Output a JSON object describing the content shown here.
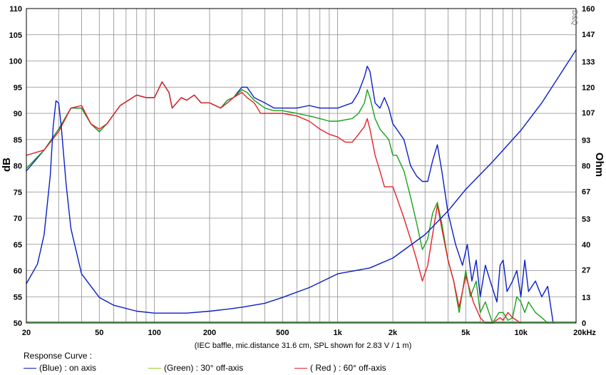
{
  "chart_data": {
    "type": "line",
    "title": "",
    "watermark": "D&Q",
    "ylabel_left": "dB",
    "ylabel_right": "Ohm",
    "caption": "(IEC baffle, mic.distance 31.6 cm, SPL shown for 2.83 V / 1 m)",
    "x_scale": "log",
    "xlim": [
      20,
      20000
    ],
    "ylim_left": [
      50,
      110
    ],
    "ylim_right": [
      0,
      160
    ],
    "x_ticks": [
      20,
      50,
      100,
      200,
      500,
      1000,
      2000,
      5000,
      10000,
      20000
    ],
    "x_tick_labels": [
      "20",
      "50",
      "100",
      "200",
      "500",
      "1k",
      "2k",
      "5k",
      "10k",
      "20kHz"
    ],
    "y_ticks_left": [
      50,
      55,
      60,
      65,
      70,
      75,
      80,
      85,
      90,
      95,
      100,
      105,
      110
    ],
    "y_tick_labels_left": [
      "50",
      "55",
      "60",
      "65",
      "70",
      "75",
      "80",
      "85",
      "90",
      "95",
      "100",
      "105",
      "110"
    ],
    "y_ticks_right": [
      0,
      13,
      27,
      40,
      53,
      67,
      80,
      93,
      107,
      120,
      133,
      147,
      160
    ],
    "y_tick_labels_right": [
      "0",
      "13",
      "27",
      "40",
      "53",
      "67",
      "80",
      "93",
      "107",
      "120",
      "133",
      "147",
      "160"
    ],
    "grid": true,
    "legend": {
      "title": "Response Curve :",
      "placement": "bottom",
      "entries": [
        {
          "label": "(Blue)  : on axis",
          "color": "#0a1ec8"
        },
        {
          "label": "(Green) : 30° off-axis",
          "color": "#9acd32"
        },
        {
          "label": "( Red ) : 60° off-axis",
          "color": "#e8202a"
        }
      ]
    },
    "series": [
      {
        "color": "#0a1ec8",
        "axis": "left",
        "points": [
          [
            20,
            79
          ],
          [
            25,
            83
          ],
          [
            30,
            87
          ],
          [
            35,
            91
          ],
          [
            40,
            91
          ],
          [
            45,
            88
          ],
          [
            50,
            86.5
          ],
          [
            55,
            88
          ],
          [
            65,
            91.5
          ],
          [
            80,
            93.5
          ],
          [
            90,
            93
          ],
          [
            100,
            93
          ],
          [
            110,
            96
          ],
          [
            120,
            94
          ],
          [
            125,
            91
          ],
          [
            140,
            93
          ],
          [
            150,
            92.5
          ],
          [
            165,
            93.5
          ],
          [
            180,
            92
          ],
          [
            200,
            92
          ],
          [
            230,
            91
          ],
          [
            250,
            92.5
          ],
          [
            270,
            93
          ],
          [
            300,
            95
          ],
          [
            320,
            95
          ],
          [
            350,
            93
          ],
          [
            400,
            92
          ],
          [
            450,
            91
          ],
          [
            500,
            91
          ],
          [
            600,
            91
          ],
          [
            700,
            91.5
          ],
          [
            800,
            91
          ],
          [
            900,
            91
          ],
          [
            1000,
            91
          ],
          [
            1200,
            92
          ],
          [
            1300,
            94
          ],
          [
            1400,
            97
          ],
          [
            1450,
            99
          ],
          [
            1500,
            98
          ],
          [
            1600,
            92
          ],
          [
            1700,
            91
          ],
          [
            1800,
            93
          ],
          [
            1900,
            91
          ],
          [
            2000,
            88
          ],
          [
            2100,
            87
          ],
          [
            2300,
            85
          ],
          [
            2500,
            80
          ],
          [
            2700,
            78
          ],
          [
            2900,
            77
          ],
          [
            3100,
            77
          ],
          [
            3300,
            81
          ],
          [
            3500,
            84
          ],
          [
            3700,
            79
          ],
          [
            4000,
            71
          ],
          [
            4400,
            65
          ],
          [
            4800,
            61
          ],
          [
            5100,
            65
          ],
          [
            5400,
            58
          ],
          [
            5700,
            62
          ],
          [
            6000,
            55
          ],
          [
            6400,
            61
          ],
          [
            6800,
            58
          ],
          [
            7400,
            54
          ],
          [
            7700,
            61
          ],
          [
            8000,
            62
          ],
          [
            8400,
            56
          ],
          [
            9000,
            58
          ],
          [
            9500,
            60
          ],
          [
            10000,
            55
          ],
          [
            10500,
            62
          ],
          [
            11000,
            56
          ],
          [
            12000,
            58
          ],
          [
            13000,
            55
          ],
          [
            14000,
            57
          ],
          [
            15000,
            50
          ]
        ]
      },
      {
        "color": "#1aa01a",
        "axis": "left",
        "points": [
          [
            20,
            79.5
          ],
          [
            25,
            83
          ],
          [
            30,
            87
          ],
          [
            35,
            91
          ],
          [
            40,
            91
          ],
          [
            45,
            88
          ],
          [
            50,
            86.5
          ],
          [
            55,
            88
          ],
          [
            65,
            91.5
          ],
          [
            80,
            93.5
          ],
          [
            90,
            93
          ],
          [
            100,
            93
          ],
          [
            110,
            96
          ],
          [
            120,
            94
          ],
          [
            125,
            91
          ],
          [
            140,
            93
          ],
          [
            150,
            92.5
          ],
          [
            165,
            93.5
          ],
          [
            180,
            92
          ],
          [
            200,
            92
          ],
          [
            230,
            91
          ],
          [
            250,
            92.5
          ],
          [
            270,
            93
          ],
          [
            300,
            94.5
          ],
          [
            320,
            94
          ],
          [
            350,
            92.5
          ],
          [
            400,
            91
          ],
          [
            450,
            90.5
          ],
          [
            500,
            90.5
          ],
          [
            600,
            90
          ],
          [
            700,
            89.5
          ],
          [
            800,
            89
          ],
          [
            900,
            88.5
          ],
          [
            1000,
            88.5
          ],
          [
            1200,
            89
          ],
          [
            1300,
            90
          ],
          [
            1400,
            92
          ],
          [
            1450,
            94.5
          ],
          [
            1500,
            93
          ],
          [
            1600,
            89
          ],
          [
            1700,
            87
          ],
          [
            1800,
            86
          ],
          [
            1900,
            85
          ],
          [
            2000,
            82
          ],
          [
            2100,
            82
          ],
          [
            2300,
            79
          ],
          [
            2500,
            74
          ],
          [
            2700,
            69
          ],
          [
            2900,
            64
          ],
          [
            3100,
            66
          ],
          [
            3300,
            71
          ],
          [
            3500,
            73
          ],
          [
            3700,
            69
          ],
          [
            4000,
            62
          ],
          [
            4300,
            58
          ],
          [
            4600,
            52
          ],
          [
            5000,
            60
          ],
          [
            5300,
            55
          ],
          [
            5700,
            58
          ],
          [
            6000,
            52
          ],
          [
            6400,
            54
          ],
          [
            7000,
            50
          ],
          [
            7600,
            52
          ],
          [
            8000,
            52
          ],
          [
            8500,
            50.5
          ],
          [
            9000,
            51
          ],
          [
            9500,
            55
          ],
          [
            10000,
            54
          ],
          [
            10500,
            52
          ],
          [
            11000,
            54
          ],
          [
            12000,
            52
          ],
          [
            13000,
            51
          ],
          [
            14000,
            50
          ]
        ]
      },
      {
        "color": "#e8202a",
        "axis": "left",
        "points": [
          [
            20,
            82
          ],
          [
            25,
            83
          ],
          [
            30,
            86.5
          ],
          [
            35,
            91
          ],
          [
            40,
            91.5
          ],
          [
            45,
            88
          ],
          [
            50,
            87
          ],
          [
            55,
            88
          ],
          [
            65,
            91.5
          ],
          [
            80,
            93.5
          ],
          [
            90,
            93
          ],
          [
            100,
            93
          ],
          [
            110,
            96
          ],
          [
            120,
            94
          ],
          [
            125,
            91
          ],
          [
            140,
            93
          ],
          [
            150,
            92.5
          ],
          [
            165,
            93.5
          ],
          [
            180,
            92
          ],
          [
            200,
            92
          ],
          [
            230,
            91
          ],
          [
            250,
            92
          ],
          [
            270,
            93
          ],
          [
            300,
            94
          ],
          [
            320,
            93
          ],
          [
            350,
            92
          ],
          [
            380,
            90
          ],
          [
            450,
            90
          ],
          [
            500,
            90
          ],
          [
            600,
            89.5
          ],
          [
            700,
            88.5
          ],
          [
            800,
            87
          ],
          [
            900,
            86
          ],
          [
            1000,
            85.5
          ],
          [
            1100,
            84.5
          ],
          [
            1200,
            84.5
          ],
          [
            1300,
            86
          ],
          [
            1400,
            87.5
          ],
          [
            1450,
            89
          ],
          [
            1500,
            87
          ],
          [
            1600,
            82
          ],
          [
            1700,
            79
          ],
          [
            1800,
            76
          ],
          [
            1900,
            76
          ],
          [
            2000,
            76
          ],
          [
            2100,
            74
          ],
          [
            2300,
            70
          ],
          [
            2500,
            66
          ],
          [
            2700,
            62
          ],
          [
            2900,
            58
          ],
          [
            3100,
            61
          ],
          [
            3300,
            67
          ],
          [
            3500,
            72.5
          ],
          [
            3700,
            68
          ],
          [
            4000,
            62
          ],
          [
            4300,
            58
          ],
          [
            4600,
            53
          ],
          [
            5000,
            59
          ],
          [
            5500,
            54
          ],
          [
            6000,
            51
          ],
          [
            6400,
            50
          ],
          [
            7000,
            50
          ],
          [
            7700,
            51
          ],
          [
            8000,
            50.5
          ],
          [
            8500,
            52
          ],
          [
            9000,
            51
          ],
          [
            10000,
            50
          ]
        ]
      },
      {
        "color": "#0a1ec8",
        "axis": "right",
        "points": [
          [
            20,
            20
          ],
          [
            23,
            30
          ],
          [
            25,
            45
          ],
          [
            27,
            75
          ],
          [
            28,
            100
          ],
          [
            29,
            113
          ],
          [
            30,
            112
          ],
          [
            31,
            100
          ],
          [
            33,
            70
          ],
          [
            35,
            48
          ],
          [
            40,
            25
          ],
          [
            50,
            13
          ],
          [
            60,
            9
          ],
          [
            80,
            6
          ],
          [
            100,
            5
          ],
          [
            150,
            5
          ],
          [
            200,
            6
          ],
          [
            250,
            7
          ],
          [
            300,
            8
          ],
          [
            400,
            10
          ],
          [
            500,
            13
          ],
          [
            700,
            18
          ],
          [
            1000,
            25
          ],
          [
            1500,
            28
          ],
          [
            2000,
            33
          ],
          [
            3000,
            45
          ],
          [
            4000,
            57
          ],
          [
            5000,
            68
          ],
          [
            7000,
            82
          ],
          [
            10000,
            98
          ],
          [
            13000,
            112
          ],
          [
            16000,
            125
          ],
          [
            20000,
            139
          ]
        ]
      },
      {
        "color": "#3cb43c",
        "axis": "right",
        "points": [
          [
            20,
            0.5
          ],
          [
            20000,
            0.5
          ]
        ]
      }
    ]
  }
}
